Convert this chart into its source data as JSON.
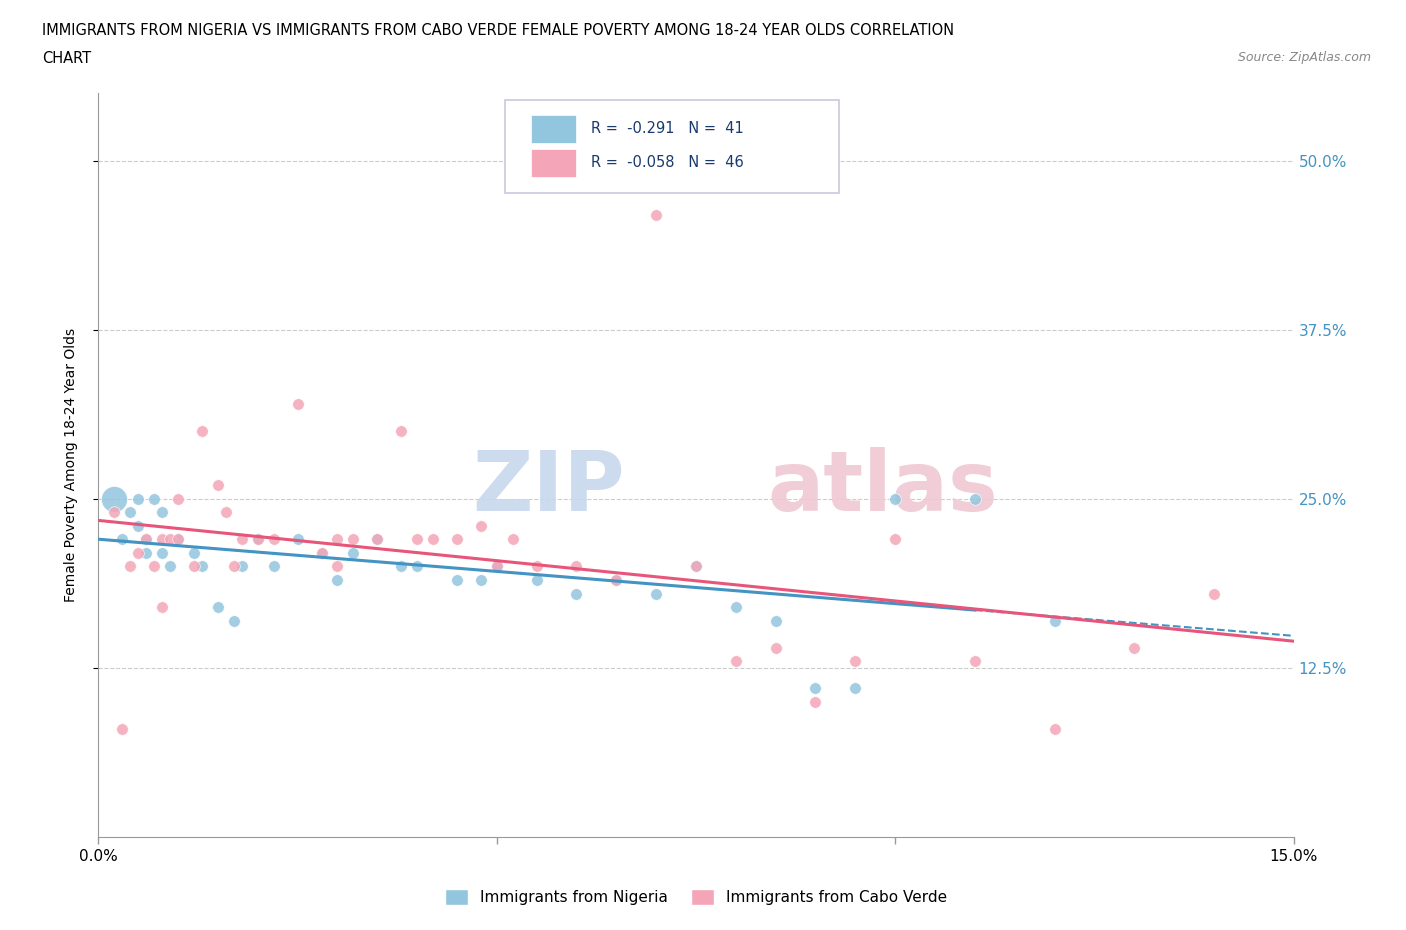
{
  "title_line1": "IMMIGRANTS FROM NIGERIA VS IMMIGRANTS FROM CABO VERDE FEMALE POVERTY AMONG 18-24 YEAR OLDS CORRELATION",
  "title_line2": "CHART",
  "source_text": "Source: ZipAtlas.com",
  "ylabel": "Female Poverty Among 18-24 Year Olds",
  "xlim": [
    0.0,
    0.15
  ],
  "ylim": [
    0.0,
    0.55
  ],
  "ytick_vals": [
    0.125,
    0.25,
    0.375,
    0.5
  ],
  "yticklabels": [
    "12.5%",
    "25.0%",
    "37.5%",
    "50.0%"
  ],
  "xtick_vals": [
    0.0,
    0.05,
    0.1,
    0.15
  ],
  "xticklabels": [
    "0.0%",
    "",
    "",
    "15.0%"
  ],
  "nigeria_R": -0.291,
  "nigeria_N": 41,
  "caboverde_R": -0.058,
  "caboverde_N": 46,
  "nigeria_color": "#92c5de",
  "caboverde_color": "#f4a6b8",
  "nigeria_line_color": "#4393c3",
  "caboverde_line_color": "#e8557a",
  "tick_label_color": "#4393c3",
  "nigeria_x": [
    0.002,
    0.003,
    0.004,
    0.005,
    0.005,
    0.006,
    0.006,
    0.007,
    0.008,
    0.008,
    0.009,
    0.01,
    0.012,
    0.013,
    0.015,
    0.017,
    0.018,
    0.02,
    0.022,
    0.025,
    0.028,
    0.03,
    0.032,
    0.035,
    0.038,
    0.04,
    0.045,
    0.048,
    0.05,
    0.055,
    0.06,
    0.065,
    0.07,
    0.075,
    0.08,
    0.085,
    0.09,
    0.095,
    0.1,
    0.11,
    0.12
  ],
  "nigeria_y": [
    0.25,
    0.22,
    0.24,
    0.23,
    0.25,
    0.22,
    0.21,
    0.25,
    0.24,
    0.21,
    0.2,
    0.22,
    0.21,
    0.2,
    0.17,
    0.16,
    0.2,
    0.22,
    0.2,
    0.22,
    0.21,
    0.19,
    0.21,
    0.22,
    0.2,
    0.2,
    0.19,
    0.19,
    0.2,
    0.19,
    0.18,
    0.19,
    0.18,
    0.2,
    0.17,
    0.16,
    0.11,
    0.11,
    0.25,
    0.25,
    0.16
  ],
  "nigeria_large_idx": 0,
  "caboverde_x": [
    0.002,
    0.003,
    0.004,
    0.005,
    0.006,
    0.007,
    0.008,
    0.008,
    0.009,
    0.01,
    0.01,
    0.012,
    0.013,
    0.015,
    0.016,
    0.017,
    0.018,
    0.02,
    0.022,
    0.025,
    0.028,
    0.03,
    0.03,
    0.032,
    0.035,
    0.038,
    0.04,
    0.042,
    0.045,
    0.048,
    0.05,
    0.052,
    0.055,
    0.06,
    0.065,
    0.07,
    0.075,
    0.08,
    0.085,
    0.09,
    0.095,
    0.1,
    0.11,
    0.12,
    0.13,
    0.14
  ],
  "caboverde_y": [
    0.24,
    0.08,
    0.2,
    0.21,
    0.22,
    0.2,
    0.22,
    0.17,
    0.22,
    0.22,
    0.25,
    0.2,
    0.3,
    0.26,
    0.24,
    0.2,
    0.22,
    0.22,
    0.22,
    0.32,
    0.21,
    0.22,
    0.2,
    0.22,
    0.22,
    0.3,
    0.22,
    0.22,
    0.22,
    0.23,
    0.2,
    0.22,
    0.2,
    0.2,
    0.19,
    0.46,
    0.2,
    0.13,
    0.14,
    0.1,
    0.13,
    0.22,
    0.13,
    0.08,
    0.14,
    0.18
  ],
  "nigeria_intercept": 0.228,
  "nigeria_slope": -0.95,
  "caboverde_intercept": 0.215,
  "caboverde_slope": -0.12,
  "nigeria_line_end": 0.11,
  "caboverde_line_end": 0.15,
  "watermark_zip_color": "#c8d8ee",
  "watermark_atlas_color": "#f0c8d4"
}
